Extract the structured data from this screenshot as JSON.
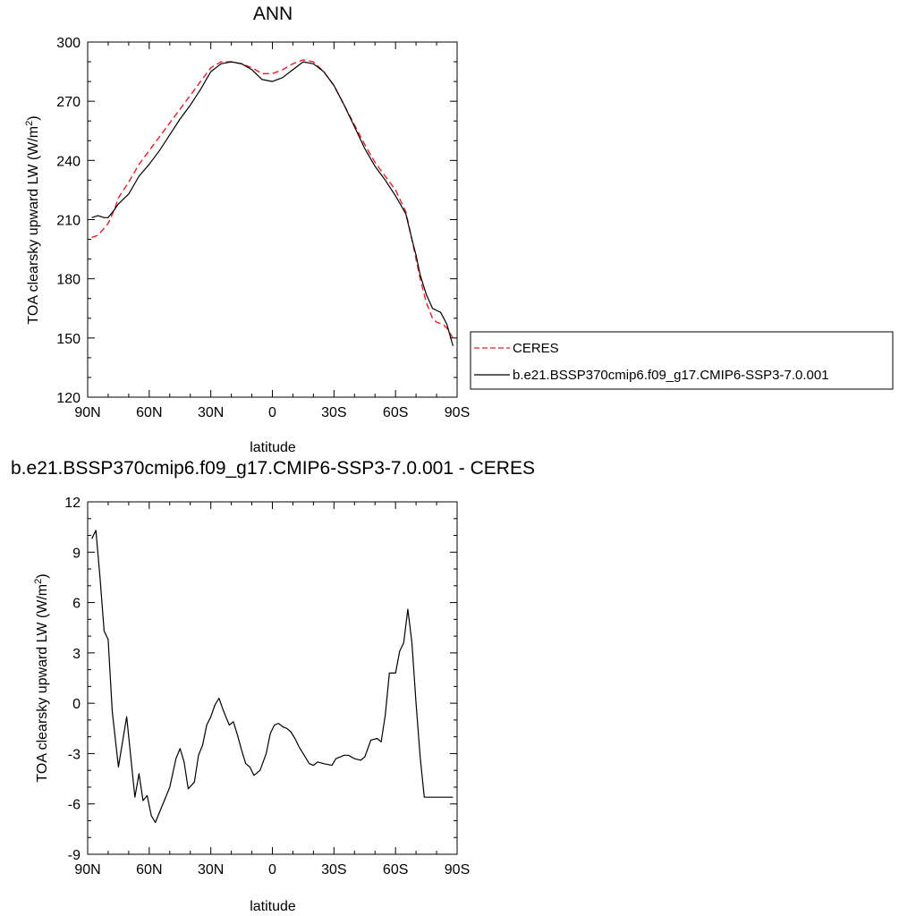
{
  "chart_data": [
    {
      "type": "line",
      "title": "ANN",
      "xlabel": "latitude",
      "ylabel_main": "TOA clearsky upward LW (W/m",
      "ylabel_sup": "2",
      "ylabel_close": ")",
      "xlim": [
        90,
        -90
      ],
      "ylim": [
        120,
        300
      ],
      "xticks": [
        90,
        60,
        30,
        0,
        -30,
        -60,
        -90
      ],
      "xtick_labels": [
        "90N",
        "60N",
        "30N",
        "0",
        "30S",
        "60S",
        "90S"
      ],
      "yticks": [
        120,
        150,
        180,
        210,
        240,
        270,
        300
      ],
      "ytick_labels": [
        "120",
        "150",
        "180",
        "210",
        "240",
        "270",
        "300"
      ],
      "y_minor_step": 10,
      "x_minor_step": 10,
      "legend_position": "right",
      "series": [
        {
          "name": "CERES",
          "color": "#e0202a",
          "style": "dashed",
          "x": [
            88,
            85,
            80,
            77,
            75,
            70,
            65,
            60,
            55,
            50,
            45,
            40,
            35,
            30,
            25,
            20,
            15,
            10,
            5,
            0,
            -5,
            -10,
            -15,
            -20,
            -25,
            -30,
            -35,
            -40,
            -45,
            -50,
            -55,
            -60,
            -65,
            -68,
            -70,
            -72,
            -75,
            -78,
            -80,
            -83,
            -85,
            -88
          ],
          "y": [
            201,
            202,
            208,
            215,
            221,
            229,
            238,
            245,
            252,
            259,
            266,
            273,
            280,
            287,
            290,
            290,
            289,
            287,
            284,
            284,
            286,
            289,
            291,
            290,
            285,
            278,
            268,
            258,
            248,
            239,
            232,
            225,
            214,
            200,
            190,
            180,
            168,
            160,
            158,
            157,
            155,
            150
          ]
        },
        {
          "name": "b.e21.BSSP370cmip6.f09_g17.CMIP6-SSP3-7.0.001",
          "color": "#000000",
          "style": "solid",
          "x": [
            88,
            85,
            82,
            80,
            77,
            75,
            70,
            65,
            60,
            55,
            50,
            45,
            40,
            35,
            30,
            25,
            20,
            15,
            10,
            5,
            0,
            -5,
            -10,
            -15,
            -20,
            -25,
            -30,
            -35,
            -40,
            -45,
            -50,
            -55,
            -60,
            -65,
            -68,
            -70,
            -72,
            -75,
            -78,
            -80,
            -82,
            -85,
            -88
          ],
          "y": [
            211,
            212,
            211,
            211,
            215,
            218,
            223,
            232,
            238,
            245,
            253,
            261,
            268,
            276,
            285,
            289,
            290,
            289,
            286,
            281,
            280,
            282,
            286,
            290,
            289,
            285,
            278,
            268,
            257,
            246,
            237,
            230,
            222,
            213,
            200,
            192,
            182,
            172,
            165,
            164,
            163,
            157,
            146
          ]
        }
      ]
    },
    {
      "type": "line",
      "title": "b.e21.BSSP370cmip6.f09_g17.CMIP6-SSP3-7.0.001 - CERES",
      "xlabel": "latitude",
      "ylabel_main": "TOA clearsky upward LW (W/m",
      "ylabel_sup": "2",
      "ylabel_close": ")",
      "xlim": [
        90,
        -90
      ],
      "ylim": [
        -9,
        12
      ],
      "xticks": [
        90,
        60,
        30,
        0,
        -30,
        -60,
        -90
      ],
      "xtick_labels": [
        "90N",
        "60N",
        "30N",
        "0",
        "30S",
        "60S",
        "90S"
      ],
      "yticks": [
        -9,
        -6,
        -3,
        0,
        3,
        6,
        9,
        12
      ],
      "ytick_labels": [
        "-9",
        "-6",
        "-3",
        "0",
        "3",
        "6",
        "9",
        "12"
      ],
      "y_minor_step": 1,
      "x_minor_step": 10,
      "series": [
        {
          "name": "",
          "color": "#000000",
          "style": "solid",
          "x": [
            88,
            86,
            84,
            82,
            80,
            78,
            75,
            71,
            67,
            65,
            63,
            61,
            59,
            57,
            54,
            50,
            47,
            45,
            43,
            41,
            38,
            36,
            34,
            32,
            30,
            28,
            26,
            24,
            21,
            19,
            17,
            15,
            13,
            11,
            9,
            6,
            3,
            1,
            -1,
            -3,
            -5,
            -7,
            -9,
            -11,
            -13,
            -15,
            -18,
            -20,
            -22,
            -25,
            -29,
            -31,
            -33,
            -35,
            -37,
            -40,
            -43,
            -45,
            -48,
            -51,
            -53,
            -55,
            -57,
            -60,
            -62,
            -64,
            -66,
            -68,
            -70,
            -72,
            -74,
            -75,
            -77,
            -79,
            -81,
            -83,
            -85,
            -87,
            -88
          ],
          "y": [
            9.8,
            10.3,
            7.5,
            4.3,
            3.8,
            -0.5,
            -3.8,
            -0.8,
            -5.6,
            -4.2,
            -5.8,
            -5.5,
            -6.7,
            -7.1,
            -6.2,
            -5.0,
            -3.3,
            -2.7,
            -3.5,
            -5.1,
            -4.7,
            -3.1,
            -2.5,
            -1.3,
            -0.8,
            -0.1,
            0.3,
            -0.4,
            -1.3,
            -1.1,
            -1.9,
            -2.8,
            -3.6,
            -3.8,
            -4.3,
            -4.0,
            -3.0,
            -1.8,
            -1.3,
            -1.2,
            -1.4,
            -1.5,
            -1.7,
            -2.1,
            -2.6,
            -3.0,
            -3.6,
            -3.7,
            -3.5,
            -3.6,
            -3.7,
            -3.3,
            -3.2,
            -3.1,
            -3.1,
            -3.3,
            -3.4,
            -3.2,
            -2.2,
            -2.1,
            -2.3,
            -0.7,
            1.8,
            1.8,
            3.1,
            3.6,
            5.6,
            3.6,
            0.0,
            -3.2,
            -5.6,
            -5.6,
            -5.6,
            -5.6,
            -5.6,
            -5.6,
            -5.6,
            -5.6,
            -5.6
          ]
        }
      ]
    }
  ]
}
